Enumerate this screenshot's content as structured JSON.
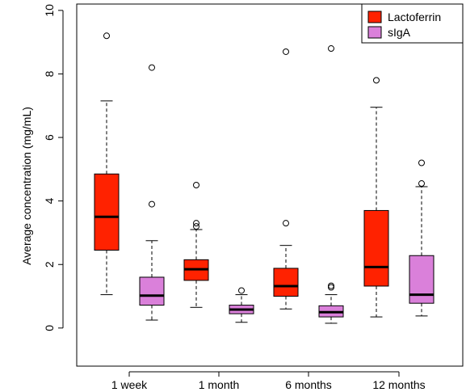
{
  "chart_data": {
    "type": "boxplot",
    "xlabel": "",
    "ylabel": "Average concentration (mg/mL)",
    "ylim": [
      -1.2,
      10.2
    ],
    "yticks": [
      0,
      2,
      4,
      6,
      8,
      10
    ],
    "categories": [
      "1 week",
      "1 month",
      "6 months",
      "12 months"
    ],
    "grid": false,
    "legend_position": "top-right",
    "series": [
      {
        "name": "Lactoferrin",
        "color": "#ff2200",
        "boxes": [
          {
            "whisker_low": 1.05,
            "q1": 2.45,
            "median": 3.5,
            "q3": 4.85,
            "whisker_high": 7.15,
            "outliers": [
              9.2
            ]
          },
          {
            "whisker_low": 0.65,
            "q1": 1.5,
            "median": 1.85,
            "q3": 2.15,
            "whisker_high": 3.1,
            "outliers": [
              3.2,
              3.3,
              4.5
            ]
          },
          {
            "whisker_low": 0.6,
            "q1": 1.0,
            "median": 1.32,
            "q3": 1.88,
            "whisker_high": 2.6,
            "outliers": [
              3.3,
              8.7
            ]
          },
          {
            "whisker_low": 0.35,
            "q1": 1.32,
            "median": 1.92,
            "q3": 3.7,
            "whisker_high": 6.95,
            "outliers": [
              7.8
            ]
          }
        ]
      },
      {
        "name": "sIgA",
        "color": "#da80da",
        "boxes": [
          {
            "whisker_low": 0.25,
            "q1": 0.72,
            "median": 1.02,
            "q3": 1.6,
            "whisker_high": 2.75,
            "outliers": [
              3.9,
              8.2
            ]
          },
          {
            "whisker_low": 0.18,
            "q1": 0.45,
            "median": 0.58,
            "q3": 0.72,
            "whisker_high": 1.05,
            "outliers": [
              1.18
            ]
          },
          {
            "whisker_low": 0.15,
            "q1": 0.35,
            "median": 0.5,
            "q3": 0.7,
            "whisker_high": 1.05,
            "outliers": [
              1.28,
              1.33,
              8.8
            ]
          },
          {
            "whisker_low": 0.38,
            "q1": 0.78,
            "median": 1.05,
            "q3": 2.28,
            "whisker_high": 4.45,
            "outliers": [
              4.55,
              5.2
            ]
          }
        ]
      }
    ]
  }
}
